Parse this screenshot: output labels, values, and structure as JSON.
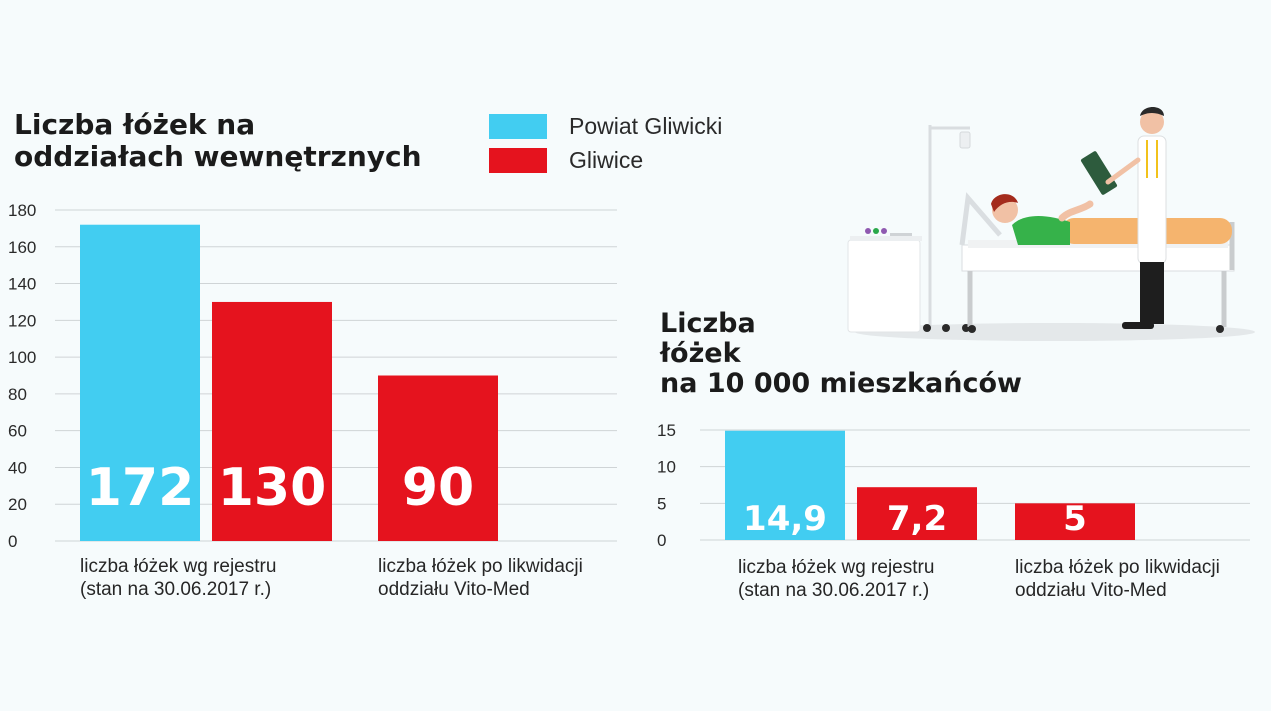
{
  "colors": {
    "powiat": "#42cdf1",
    "gliwice": "#e5131e",
    "grid": "#cfd4d6",
    "axis_text": "#2a2a2a"
  },
  "legend": [
    {
      "label": "Powiat Gliwicki",
      "color": "#42cdf1"
    },
    {
      "label": "Gliwice",
      "color": "#e5131e"
    }
  ],
  "chart_data": [
    {
      "type": "bar",
      "title": [
        "Liczba łóżek na",
        "oddziałach wewnętrznych"
      ],
      "ylim": [
        0,
        180
      ],
      "yticks": [
        0,
        20,
        40,
        60,
        80,
        100,
        120,
        140,
        160,
        180
      ],
      "grid": true,
      "legend_placement": "top-right",
      "categories": [
        [
          "liczba łóżek wg rejestru",
          "(stan na 30.06.2017 r.)"
        ],
        [
          "liczba łóżek po likwidacji",
          "oddziału Vito-Med"
        ]
      ],
      "bars": [
        {
          "series": "Powiat Gliwicki",
          "category": 0,
          "value": 172,
          "label": "172"
        },
        {
          "series": "Gliwice",
          "category": 0,
          "value": 130,
          "label": "130"
        },
        {
          "series": "Gliwice",
          "category": 1,
          "value": 90,
          "label": "90"
        }
      ]
    },
    {
      "type": "bar",
      "title": [
        "Liczba",
        "łóżek",
        "na 10 000 mieszkańców"
      ],
      "ylim": [
        0,
        15
      ],
      "yticks": [
        0,
        5,
        10,
        15
      ],
      "grid": true,
      "categories": [
        [
          "liczba łóżek wg rejestru",
          "(stan na 30.06.2017 r.)"
        ],
        [
          "liczba łóżek po likwidacji",
          "oddziału Vito-Med"
        ]
      ],
      "bars": [
        {
          "series": "Powiat Gliwicki",
          "category": 0,
          "value": 14.9,
          "label": "14,9"
        },
        {
          "series": "Gliwice",
          "category": 0,
          "value": 7.2,
          "label": "7,2"
        },
        {
          "series": "Gliwice",
          "category": 1,
          "value": 5,
          "label": "5"
        }
      ]
    }
  ]
}
